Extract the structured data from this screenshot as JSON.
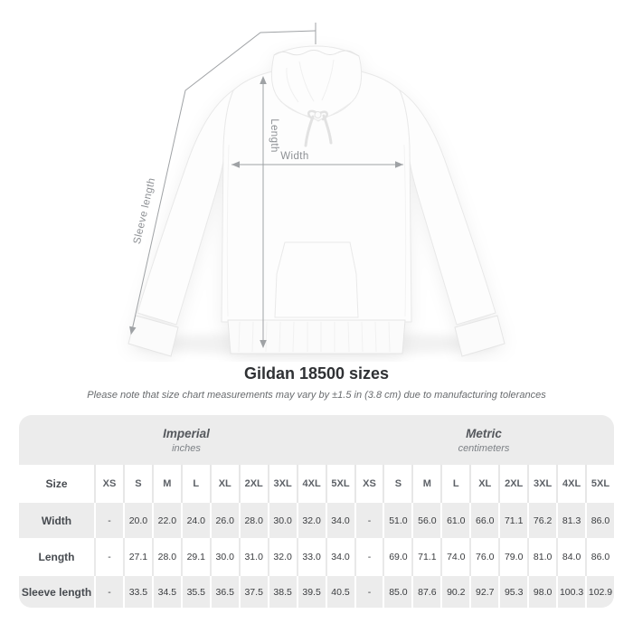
{
  "page": {
    "title": "Gildan 18500 sizes",
    "note": "Please note that size chart measurements may vary by ±1.5 in (3.8 cm) due to manufacturing tolerances"
  },
  "diagram": {
    "width_label": "Width",
    "length_label": "Length",
    "sleeve_label": "Sleeve length"
  },
  "table": {
    "groups": [
      {
        "label": "Imperial",
        "sublabel": "inches"
      },
      {
        "label": "Metric",
        "sublabel": "centimeters"
      }
    ],
    "size_header": "Size",
    "sizes": [
      "XS",
      "S",
      "M",
      "L",
      "XL",
      "2XL",
      "3XL",
      "4XL",
      "5XL"
    ],
    "rows": [
      {
        "label": "Width",
        "imperial": [
          "-",
          "20.0",
          "22.0",
          "24.0",
          "26.0",
          "28.0",
          "30.0",
          "32.0",
          "34.0"
        ],
        "metric": [
          "-",
          "51.0",
          "56.0",
          "61.0",
          "66.0",
          "71.1",
          "76.2",
          "81.3",
          "86.0"
        ]
      },
      {
        "label": "Length",
        "imperial": [
          "-",
          "27.1",
          "28.0",
          "29.1",
          "30.0",
          "31.0",
          "32.0",
          "33.0",
          "34.0"
        ],
        "metric": [
          "-",
          "69.0",
          "71.1",
          "74.0",
          "76.0",
          "79.0",
          "81.0",
          "84.0",
          "86.0"
        ]
      },
      {
        "label": "Sleeve length",
        "imperial": [
          "-",
          "33.5",
          "34.5",
          "35.5",
          "36.5",
          "37.5",
          "38.5",
          "39.5",
          "40.5"
        ],
        "metric": [
          "-",
          "85.0",
          "87.6",
          "90.2",
          "92.7",
          "95.3",
          "98.0",
          "100.3",
          "102.9"
        ]
      }
    ]
  },
  "colors": {
    "table_gray": "#ececec",
    "arrow_gray": "#9fa2a5",
    "measure_label_gray": "#8d9094",
    "title_dark": "#2f3134"
  }
}
